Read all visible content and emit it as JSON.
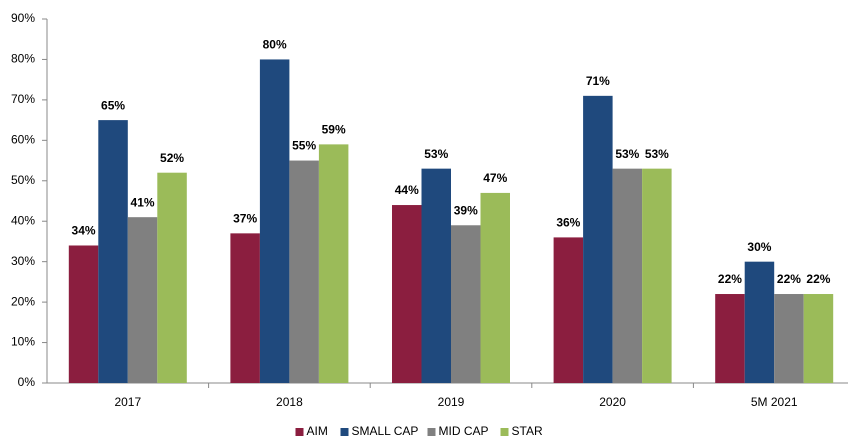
{
  "chart_data": {
    "type": "bar",
    "categories": [
      "2017",
      "2018",
      "2019",
      "2020",
      "5M 2021"
    ],
    "series": [
      {
        "name": "AIM",
        "color": "#8b1e3f",
        "values": [
          34,
          37,
          44,
          36,
          22
        ],
        "value_labels": [
          "34%",
          "37%",
          "44%",
          "36%",
          "22%"
        ]
      },
      {
        "name": "SMALL CAP",
        "color": "#1f497d",
        "values": [
          65,
          80,
          53,
          71,
          30
        ],
        "value_labels": [
          "65%",
          "80%",
          "53%",
          "71%",
          "30%"
        ]
      },
      {
        "name": "MID CAP",
        "color": "#808080",
        "values": [
          41,
          55,
          39,
          53,
          22
        ],
        "value_labels": [
          "41%",
          "55%",
          "39%",
          "53%",
          "22%"
        ]
      },
      {
        "name": "STAR",
        "color": "#9bbb59",
        "values": [
          52,
          59,
          47,
          53,
          22
        ],
        "value_labels": [
          "52%",
          "59%",
          "47%",
          "53%",
          "22%"
        ]
      }
    ],
    "ylim": [
      0,
      90
    ],
    "yticks": [
      {
        "value": 0,
        "label": "0%"
      },
      {
        "value": 10,
        "label": "10%"
      },
      {
        "value": 20,
        "label": "20%"
      },
      {
        "value": 30,
        "label": "30%"
      },
      {
        "value": 40,
        "label": "40%"
      },
      {
        "value": 50,
        "label": "50%"
      },
      {
        "value": 60,
        "label": "60%"
      },
      {
        "value": 70,
        "label": "70%"
      },
      {
        "value": 80,
        "label": "80%"
      },
      {
        "value": 90,
        "label": "90%"
      }
    ],
    "legend": "bottom"
  }
}
